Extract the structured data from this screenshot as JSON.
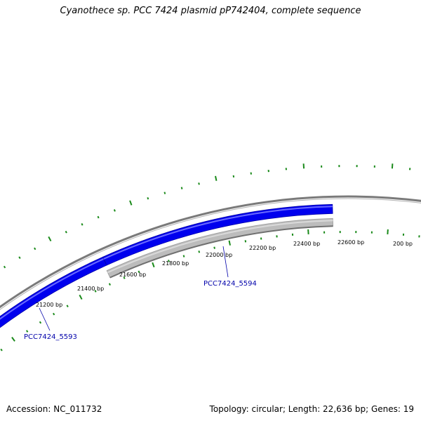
{
  "title": "Cyanothece sp. PCC 7424 plasmid pP742404, complete sequence",
  "footer": {
    "accession": "Accession: NC_011732",
    "topology": "Topology: circular; Length: 22,636 bp; Genes: 19"
  },
  "colors": {
    "backbone": "#7a7a7a",
    "forward_gene": "#0000ee",
    "reverse_gene": "#b8b8b8",
    "tick": "#1a8a1a",
    "gene_label": "#0000aa"
  },
  "genes": [
    {
      "locus": "PCC7424_5593",
      "strand": "forward"
    },
    {
      "locus": "PCC7424_5594",
      "strand": "reverse"
    }
  ],
  "tick_labels": [
    "21200 bp",
    "21400 bp",
    "21600 bp",
    "21800 bp",
    "22000 bp",
    "22200 bp",
    "22400 bp",
    "22600 bp",
    "200 bp"
  ]
}
